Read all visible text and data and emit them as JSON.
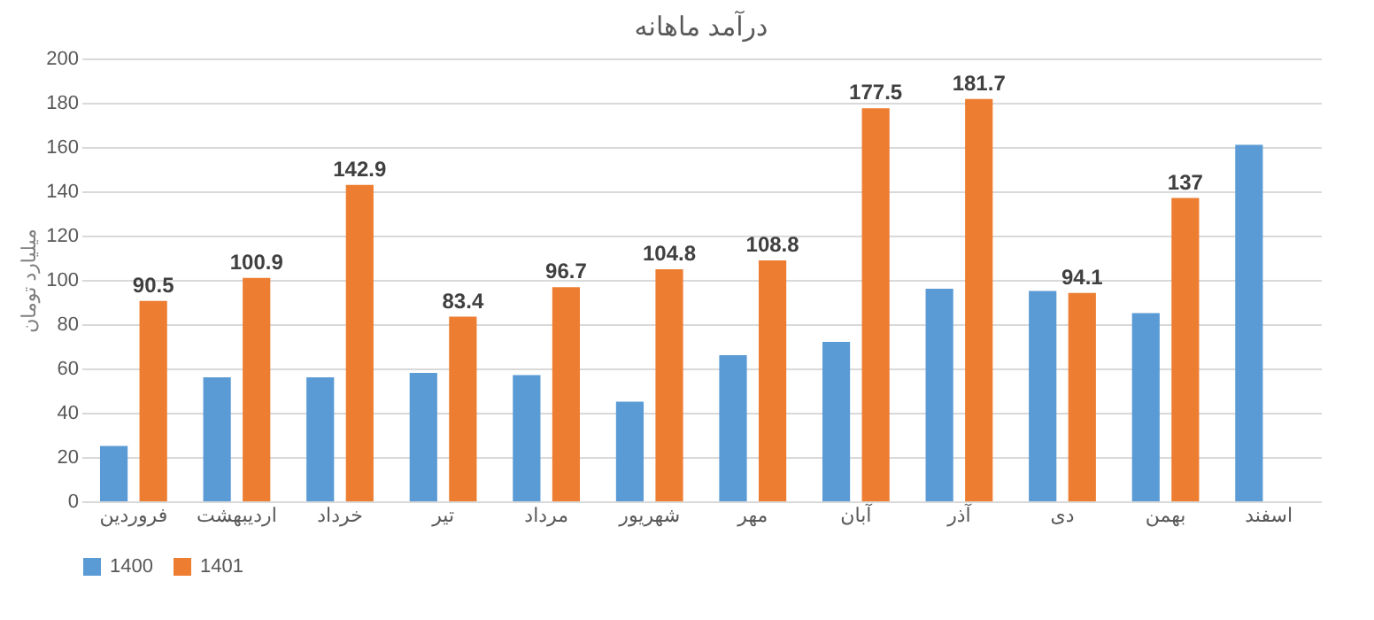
{
  "chart_data": {
    "type": "bar",
    "title": "درآمد ماهانه",
    "ylabel": "میلیارد تومان",
    "categories": [
      "فروردین",
      "اردیبهشت",
      "خرداد",
      "تیر",
      "مرداد",
      "شهریور",
      "مهر",
      "آبان",
      "آذر",
      "دی",
      "بهمن",
      "اسفند"
    ],
    "series": [
      {
        "name": "1400",
        "color": "#5b9bd5",
        "values": [
          25,
          56,
          56,
          58,
          57,
          45,
          66,
          72,
          96,
          95,
          85,
          161
        ]
      },
      {
        "name": "1401",
        "color": "#ed7d31",
        "values": [
          90.5,
          100.9,
          142.9,
          83.4,
          96.7,
          104.8,
          108.8,
          177.5,
          181.7,
          94.1,
          137,
          null
        ],
        "value_labels": [
          "90.5",
          "100.9",
          "142.9",
          "83.4",
          "96.7",
          "104.8",
          "108.8",
          "177.5",
          "181.7",
          "94.1",
          "137",
          null
        ]
      }
    ],
    "ylim": [
      0,
      200
    ],
    "yticks": [
      0,
      20,
      40,
      60,
      80,
      100,
      120,
      140,
      160,
      180,
      200
    ],
    "grid": "y",
    "legend": "bottom"
  }
}
